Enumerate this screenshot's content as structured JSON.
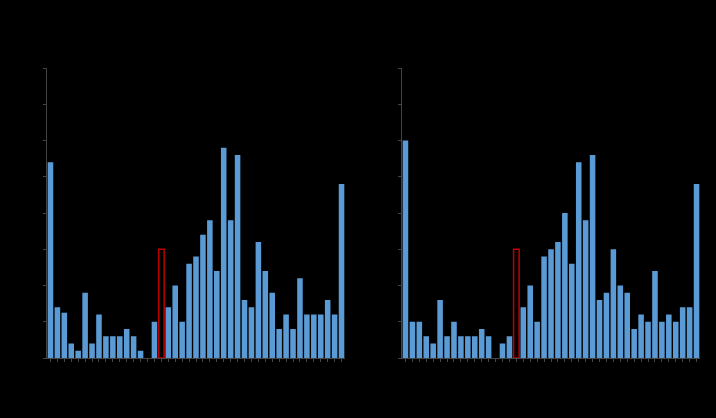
{
  "chart_data": [
    {
      "type": "bar",
      "categories": [
        null,
        null,
        null,
        null,
        null,
        null,
        null,
        null,
        null,
        null,
        null,
        null,
        null,
        null,
        null,
        null,
        null,
        null,
        null,
        null,
        null,
        null,
        null,
        null,
        null,
        null,
        null,
        null,
        null,
        null,
        null,
        null,
        null,
        null,
        null,
        null,
        null,
        null,
        null,
        null,
        null,
        null,
        null
      ],
      "series": [
        {
          "color": "#5b9bd5",
          "marker": "filled",
          "values": [
            5.4,
            1.4,
            1.25,
            0.4,
            0.2,
            1.8,
            0.4,
            1.2,
            0.6,
            0.6,
            0.6,
            0.8,
            0.6,
            0.2,
            0,
            1.0,
            null,
            1.4,
            2.0,
            1.0,
            2.6,
            2.8,
            3.4,
            3.8,
            2.4,
            5.8,
            3.8,
            5.6,
            1.6,
            1.4,
            3.2,
            2.4,
            1.8,
            0.8,
            1.2,
            0.8,
            2.2,
            1.2,
            1.2,
            1.2,
            1.6,
            1.2,
            4.8
          ]
        },
        {
          "color": "#c00000",
          "marker": "outline",
          "values": [
            null,
            null,
            null,
            null,
            null,
            null,
            null,
            null,
            null,
            null,
            null,
            null,
            null,
            null,
            null,
            null,
            3.0,
            null,
            null,
            null,
            null,
            null,
            null,
            null,
            null,
            null,
            null,
            null,
            null,
            null,
            null,
            null,
            null,
            null,
            null,
            null,
            null,
            null,
            null,
            null,
            null,
            null,
            null
          ]
        }
      ],
      "ylim": [
        0,
        8
      ],
      "yticks": [
        0,
        1,
        2,
        3,
        4,
        5,
        6,
        7,
        8
      ],
      "grid": false,
      "tick_labels": false
    },
    {
      "type": "bar",
      "categories": [
        null,
        null,
        null,
        null,
        null,
        null,
        null,
        null,
        null,
        null,
        null,
        null,
        null,
        null,
        null,
        null,
        null,
        null,
        null,
        null,
        null,
        null,
        null,
        null,
        null,
        null,
        null,
        null,
        null,
        null,
        null,
        null,
        null,
        null,
        null,
        null,
        null,
        null,
        null,
        null,
        null,
        null,
        null
      ],
      "series": [
        {
          "color": "#5b9bd5",
          "marker": "filled",
          "values": [
            6.0,
            1.0,
            1.0,
            0.6,
            0.4,
            1.6,
            0.6,
            1.0,
            0.6,
            0.6,
            0.6,
            0.8,
            0.6,
            0,
            0.4,
            0.6,
            null,
            1.4,
            2.0,
            1.0,
            2.8,
            3.0,
            3.2,
            4.0,
            2.6,
            5.4,
            3.8,
            5.6,
            1.6,
            1.8,
            3.0,
            2.0,
            1.8,
            0.8,
            1.2,
            1.0,
            2.4,
            1.0,
            1.2,
            1.0,
            1.4,
            1.4,
            4.8
          ]
        },
        {
          "color": "#c00000",
          "marker": "outline",
          "values": [
            null,
            null,
            null,
            null,
            null,
            null,
            null,
            null,
            null,
            null,
            null,
            null,
            null,
            null,
            null,
            null,
            3.0,
            null,
            null,
            null,
            null,
            null,
            null,
            null,
            null,
            null,
            null,
            null,
            null,
            null,
            null,
            null,
            null,
            null,
            null,
            null,
            null,
            null,
            null,
            null,
            null,
            null,
            null
          ]
        }
      ],
      "ylim": [
        0,
        8
      ],
      "yticks": [
        0,
        1,
        2,
        3,
        4,
        5,
        6,
        7,
        8
      ],
      "grid": false,
      "tick_labels": false
    }
  ]
}
